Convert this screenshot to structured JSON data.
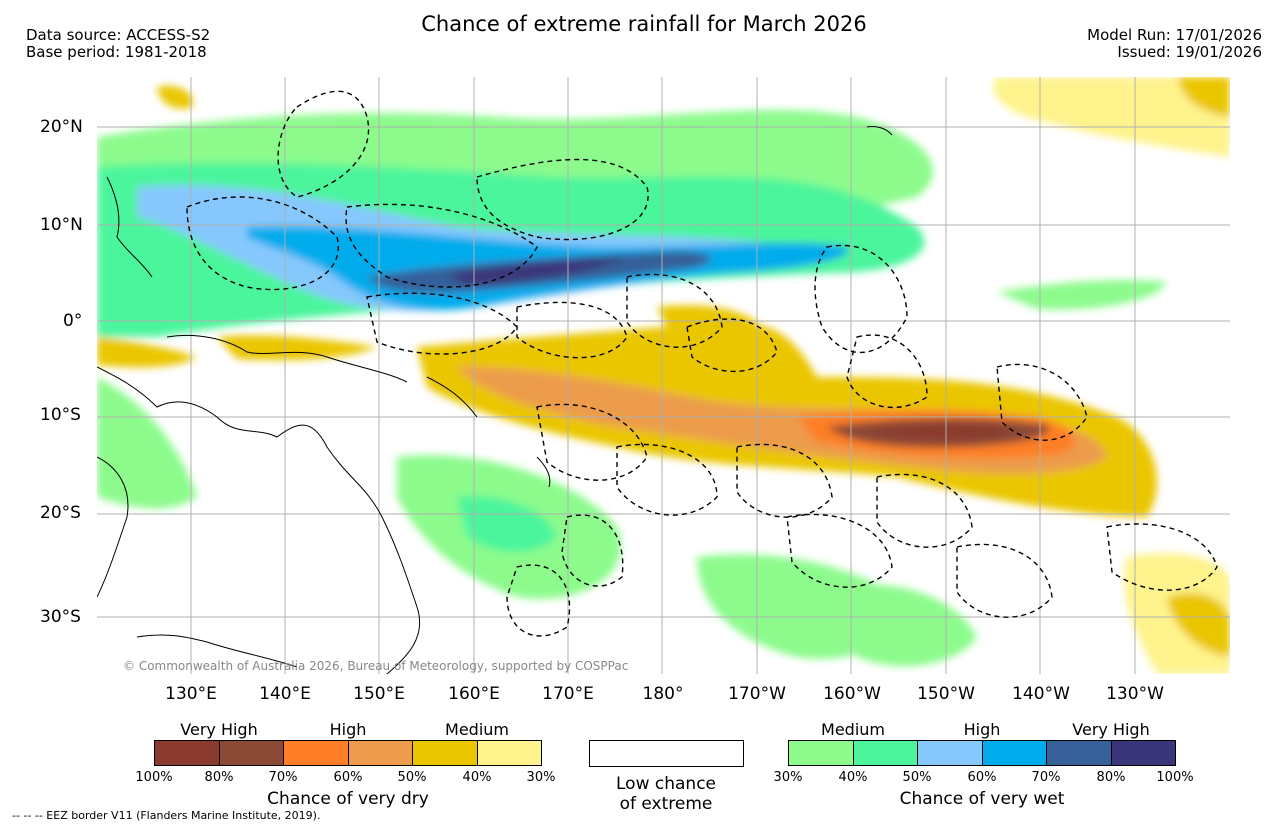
{
  "title": "Chance of extreme rainfall for March 2026",
  "meta_left": {
    "line1": "Data source: ACCESS-S2",
    "line2": "Base period: 1981-2018"
  },
  "meta_right": {
    "line1": "Model Run: 17/01/2026",
    "line2": "Issued: 19/01/2026"
  },
  "lat_labels": [
    "20°N",
    "10°N",
    "0°",
    "10°S",
    "20°S",
    "30°S"
  ],
  "lon_labels": [
    "130°E",
    "140°E",
    "150°E",
    "160°E",
    "170°E",
    "180°",
    "170°W",
    "160°W",
    "150°W",
    "140°W",
    "130°W"
  ],
  "credit": "© Commonwealth of Australia 2026, Bureau of Meteorology, supported by COSPPac",
  "dry_legend": {
    "categories": [
      "Very High",
      "High",
      "Medium"
    ],
    "colors": [
      "#8b3a2f",
      "#8b4a36",
      "#fe7f27",
      "#ec9c4c",
      "#eac600",
      "#fef38c"
    ],
    "ticks": [
      "100%",
      "80%",
      "70%",
      "60%",
      "50%",
      "40%",
      "30%"
    ],
    "caption": "Chance of very dry"
  },
  "low_legend": {
    "line1": "Low chance",
    "line2": "of extreme"
  },
  "wet_legend": {
    "categories": [
      "Medium",
      "High",
      "Very High"
    ],
    "colors": [
      "#8cfb8c",
      "#4cf59c",
      "#86c8fd",
      "#00acec",
      "#35609a",
      "#3b3679"
    ],
    "ticks": [
      "30%",
      "40%",
      "50%",
      "60%",
      "70%",
      "80%",
      "100%"
    ],
    "caption": "Chance of very wet"
  },
  "footnote": "-- -- -- EEZ border V11 (Flanders Marine Institute, 2019)."
}
